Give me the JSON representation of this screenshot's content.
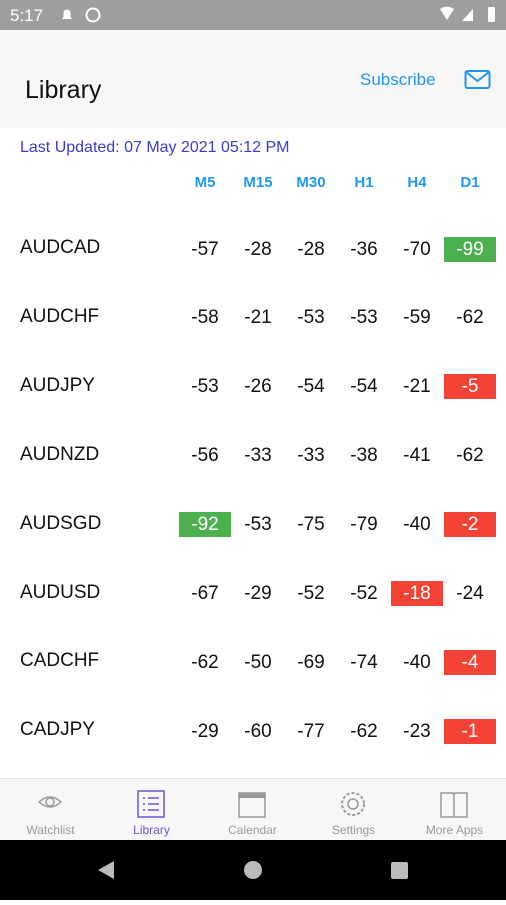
{
  "status_bar": {
    "time": "5:17"
  },
  "header": {
    "title": "Library",
    "action": "Subscribe"
  },
  "last_updated": "Last Updated: 07 May 2021 05:12 PM",
  "table": {
    "columns": [
      "M5",
      "M15",
      "M30",
      "H1",
      "H4",
      "D1"
    ],
    "rows": [
      {
        "pair": "AUDCAD",
        "cells": [
          -57,
          -28,
          -28,
          -36,
          -70,
          {
            "value": -99,
            "color": "#4caf50"
          }
        ]
      },
      {
        "pair": "AUDCHF",
        "cells": [
          -58,
          -21,
          -53,
          -53,
          -59,
          -62
        ]
      },
      {
        "pair": "AUDJPY",
        "cells": [
          -53,
          -26,
          -54,
          -54,
          -21,
          {
            "value": -5,
            "color": "#f44336"
          }
        ]
      },
      {
        "pair": "AUDNZD",
        "cells": [
          -56,
          -33,
          -33,
          -38,
          -41,
          -62
        ]
      },
      {
        "pair": "AUDSGD",
        "cells": [
          {
            "value": -92,
            "color": "#4caf50"
          },
          -53,
          -75,
          -79,
          -40,
          {
            "value": -2,
            "color": "#f44336"
          }
        ]
      },
      {
        "pair": "AUDUSD",
        "cells": [
          -67,
          -29,
          -52,
          -52,
          {
            "value": -18,
            "color": "#f44336"
          },
          -24
        ]
      },
      {
        "pair": "CADCHF",
        "cells": [
          -62,
          -50,
          -69,
          -74,
          -40,
          {
            "value": -4,
            "color": "#f44336"
          }
        ]
      },
      {
        "pair": "CADJPY",
        "cells": [
          -29,
          -60,
          -77,
          -62,
          -23,
          {
            "value": -1,
            "color": "#f44336"
          }
        ]
      }
    ]
  },
  "nav": {
    "tabs": [
      "Watchlist",
      "Library",
      "Calendar",
      "Settings",
      "More Apps"
    ],
    "active": 1
  }
}
